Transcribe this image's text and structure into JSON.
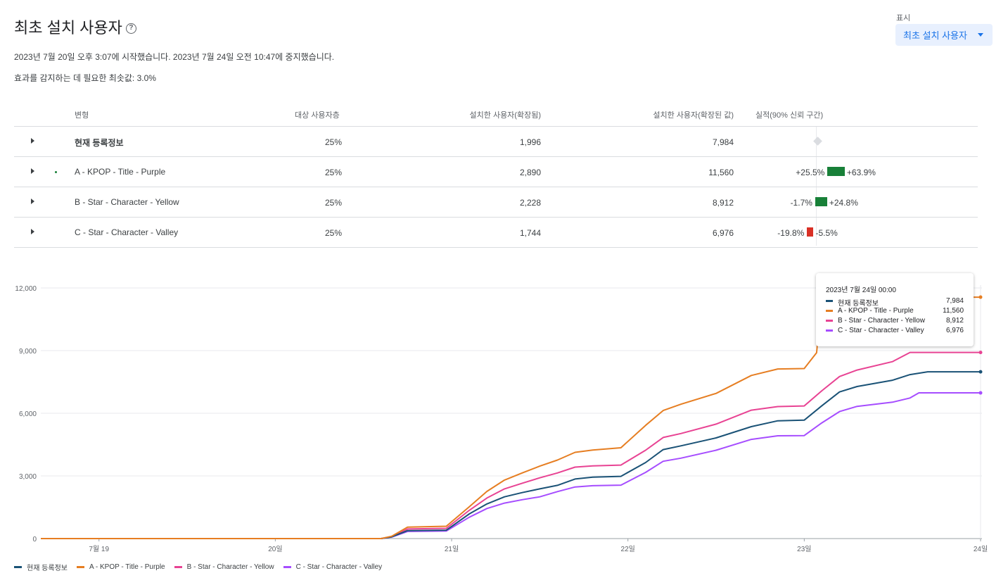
{
  "header": {
    "title": "최초 설치 사용자",
    "help_icon": "?",
    "subtitle1": "2023년 7월 20일 오후 3:07에 시작했습니다. 2023년 7월 24일 오전 10:47에 중지했습니다.",
    "subtitle2": "효과를 감지하는 데 필요한 최솟값: 3.0%"
  },
  "display": {
    "label": "표시",
    "value": "최초 설치 사용자"
  },
  "table": {
    "headers": {
      "variant": "변형",
      "audience": "대상 사용자층",
      "installs": "설치한 사용자(확장됨)",
      "scaled": "설치한 사용자(확장된 값)",
      "performance": "실적(90% 신뢰 구간)"
    },
    "rows": [
      {
        "name": "현재 등록정보",
        "audience": "25%",
        "installs": "1,996",
        "scaled": "7,984",
        "ci_low": "",
        "ci_high": "",
        "low_value": null,
        "high_value": null
      },
      {
        "name": "A - KPOP - Title - Purple",
        "audience": "25%",
        "installs": "2,890",
        "scaled": "11,560",
        "ci_low": "+25.5%",
        "ci_high": "+63.9%",
        "low_value": 25.5,
        "high_value": 63.9
      },
      {
        "name": "B - Star - Character - Yellow",
        "audience": "25%",
        "installs": "2,228",
        "scaled": "8,912",
        "ci_low": "-1.7%",
        "ci_high": "+24.8%",
        "low_value": -1.7,
        "high_value": 24.8
      },
      {
        "name": "C - Star - Character - Valley",
        "audience": "25%",
        "installs": "1,744",
        "scaled": "6,976",
        "ci_low": "-19.8%",
        "ci_high": "-5.5%",
        "low_value": -19.8,
        "high_value": -5.5
      }
    ]
  },
  "colors": {
    "current": "#1a5276",
    "a": "#e67e22",
    "b": "#e84393",
    "c": "#a64dff",
    "positive": "#188038",
    "negative": "#d93025"
  },
  "tooltip": {
    "title": "2023년 7월 24일 00:00",
    "rows": [
      {
        "name": "현재 등록정보",
        "value": "7,984"
      },
      {
        "name": "A - KPOP - Title - Purple",
        "value": "11,560"
      },
      {
        "name": "B - Star - Character - Yellow",
        "value": "8,912"
      },
      {
        "name": "C - Star - Character - Valley",
        "value": "6,976"
      }
    ]
  },
  "legend": [
    {
      "name": "현재 등록정보"
    },
    {
      "name": "A - KPOP - Title - Purple"
    },
    {
      "name": "B - Star - Character - Yellow"
    },
    {
      "name": "C - Star - Character - Valley"
    }
  ],
  "chart_data": {
    "type": "line",
    "ylim": [
      0,
      12000
    ],
    "yticks": [
      0,
      3000,
      6000,
      9000,
      12000
    ],
    "ytick_labels": [
      "0",
      "3,000",
      "6,000",
      "9,000",
      "12,000"
    ],
    "xticks": [
      {
        "day": 19,
        "label": "7월 19"
      },
      {
        "day": 20,
        "label": "20일"
      },
      {
        "day": 21,
        "label": "21일"
      },
      {
        "day": 22,
        "label": "22일"
      },
      {
        "day": 23,
        "label": "23일"
      },
      {
        "day": 24,
        "label": "24일"
      }
    ],
    "xlim": [
      18.67,
      24.0
    ],
    "grid": true,
    "series": [
      {
        "name": "현재 등록정보",
        "x": [
          18.67,
          20.6,
          20.66,
          20.75,
          20.97,
          21.1,
          21.2,
          21.3,
          21.4,
          21.5,
          21.6,
          21.7,
          21.8,
          21.96,
          22.1,
          22.2,
          22.3,
          22.5,
          22.7,
          22.85,
          23.0,
          23.1,
          23.2,
          23.3,
          23.5,
          23.6,
          23.7,
          24.0
        ],
        "y": [
          0,
          0,
          80,
          380,
          400,
          1180,
          1660,
          2000,
          2200,
          2380,
          2550,
          2850,
          2940,
          2980,
          3640,
          4260,
          4440,
          4820,
          5360,
          5640,
          5670,
          6360,
          7020,
          7280,
          7580,
          7850,
          7984,
          7984
        ]
      },
      {
        "name": "A - KPOP - Title - Purple",
        "x": [
          18.67,
          20.6,
          20.66,
          20.75,
          20.97,
          21.1,
          21.2,
          21.3,
          21.4,
          21.5,
          21.6,
          21.7,
          21.8,
          21.96,
          22.1,
          22.2,
          22.3,
          22.5,
          22.7,
          22.85,
          23.0,
          23.07,
          23.1,
          24.0
        ],
        "y": [
          0,
          0,
          110,
          550,
          590,
          1520,
          2260,
          2800,
          3140,
          3470,
          3760,
          4130,
          4240,
          4350,
          5420,
          6130,
          6430,
          6950,
          7810,
          8120,
          8140,
          8900,
          11560,
          11560
        ]
      },
      {
        "name": "B - Star - Character - Yellow",
        "x": [
          18.67,
          20.6,
          20.66,
          20.75,
          20.97,
          21.1,
          21.2,
          21.3,
          21.4,
          21.5,
          21.6,
          21.7,
          21.8,
          21.96,
          22.1,
          22.2,
          22.3,
          22.5,
          22.7,
          22.85,
          23.0,
          23.1,
          23.2,
          23.3,
          23.5,
          23.6,
          24.0
        ],
        "y": [
          0,
          0,
          90,
          460,
          490,
          1350,
          1940,
          2380,
          2650,
          2910,
          3140,
          3420,
          3480,
          3520,
          4230,
          4840,
          5030,
          5480,
          6150,
          6320,
          6350,
          7080,
          7760,
          8070,
          8470,
          8912,
          8912
        ]
      },
      {
        "name": "C - Star - Character - Valley",
        "x": [
          18.67,
          20.6,
          20.66,
          20.75,
          20.97,
          21.1,
          21.2,
          21.3,
          21.4,
          21.5,
          21.6,
          21.7,
          21.8,
          21.96,
          22.1,
          22.2,
          22.3,
          22.5,
          22.7,
          22.85,
          23.0,
          23.1,
          23.2,
          23.3,
          23.5,
          23.6,
          23.65,
          24.0
        ],
        "y": [
          0,
          0,
          70,
          340,
          360,
          1020,
          1440,
          1700,
          1860,
          2000,
          2250,
          2470,
          2530,
          2560,
          3170,
          3700,
          3850,
          4230,
          4750,
          4920,
          4930,
          5540,
          6080,
          6330,
          6530,
          6730,
          6976,
          6976
        ]
      }
    ]
  }
}
